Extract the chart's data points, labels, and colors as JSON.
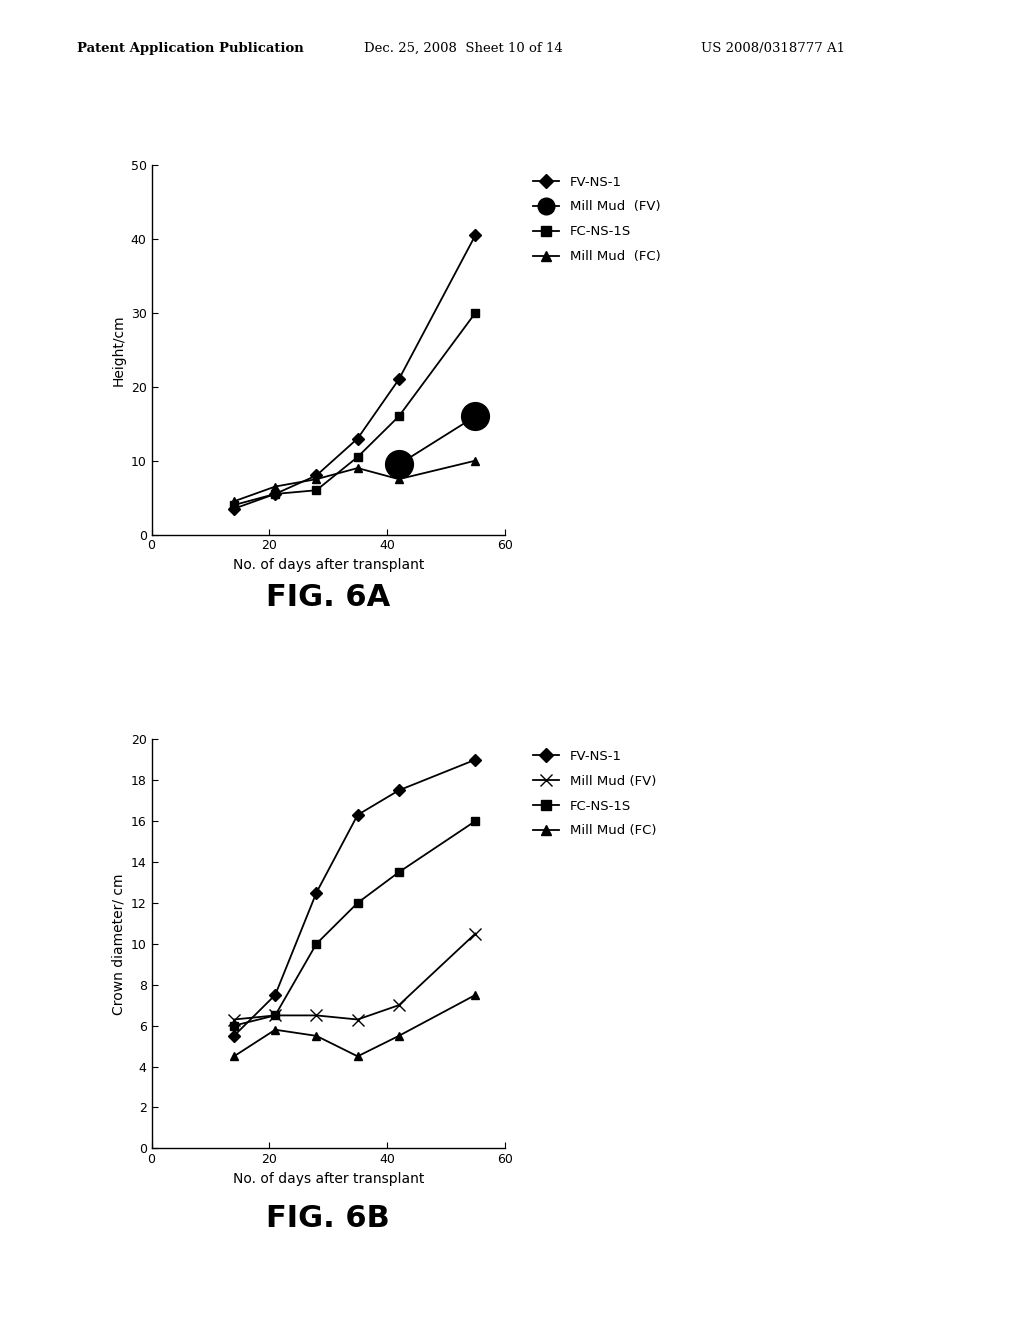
{
  "header_left": "Patent Application Publication",
  "header_mid": "Dec. 25, 2008  Sheet 10 of 14",
  "header_right": "US 2008/0318777 A1",
  "fig6a": {
    "title": "FIG. 6A",
    "xlabel": "No. of days after transplant",
    "ylabel": "Height/cm",
    "xlim": [
      0,
      60
    ],
    "ylim": [
      0,
      50
    ],
    "xticks": [
      0,
      20,
      40,
      60
    ],
    "yticks": [
      0,
      10,
      20,
      30,
      40,
      50
    ],
    "series": [
      {
        "label": "FV-NS-1",
        "x": [
          14,
          21,
          28,
          35,
          42,
          55
        ],
        "y": [
          3.5,
          5.5,
          8.0,
          13.0,
          21.0,
          40.5
        ],
        "marker": "D",
        "markersize": 6,
        "linestyle": "-",
        "color": "#000000",
        "markerfacecolor": "#000000",
        "zorder": 5
      },
      {
        "label": "Mill Mud  (FV)",
        "x": [
          42,
          55
        ],
        "y": [
          9.5,
          16.0
        ],
        "marker": "o",
        "markersize": 20,
        "linestyle": "-",
        "color": "#000000",
        "markerfacecolor": "#000000",
        "zorder": 4
      },
      {
        "label": "FC-NS-1S",
        "x": [
          14,
          21,
          28,
          35,
          42,
          55
        ],
        "y": [
          4.0,
          5.5,
          6.0,
          10.5,
          16.0,
          30.0
        ],
        "marker": "s",
        "markersize": 6,
        "linestyle": "-",
        "color": "#000000",
        "markerfacecolor": "#000000",
        "zorder": 3
      },
      {
        "label": "Mill Mud  (FC)",
        "x": [
          14,
          21,
          28,
          35,
          42,
          55
        ],
        "y": [
          4.5,
          6.5,
          7.5,
          9.0,
          7.5,
          10.0
        ],
        "marker": "^",
        "markersize": 6,
        "linestyle": "-",
        "color": "#000000",
        "markerfacecolor": "#000000",
        "zorder": 2
      }
    ],
    "legend_items": [
      {
        "label": "FV-NS-1",
        "marker": "D",
        "markersize": 7
      },
      {
        "label": "Mill Mud  (FV)",
        "marker": "o",
        "markersize": 12
      },
      {
        "label": "FC-NS-1S",
        "marker": "s",
        "markersize": 7
      },
      {
        "label": "Mill Mud  (FC)",
        "marker": "^",
        "markersize": 7
      }
    ]
  },
  "fig6b": {
    "title": "FIG. 6B",
    "xlabel": "No. of days after transplant",
    "ylabel": "Crown diameter/ cm",
    "xlim": [
      0,
      60
    ],
    "ylim": [
      0,
      20
    ],
    "xticks": [
      0,
      20,
      40,
      60
    ],
    "yticks": [
      0,
      2,
      4,
      6,
      8,
      10,
      12,
      14,
      16,
      18,
      20
    ],
    "series": [
      {
        "label": "FV-NS-1",
        "x": [
          14,
          21,
          28,
          35,
          42,
          55
        ],
        "y": [
          5.5,
          7.5,
          12.5,
          16.3,
          17.5,
          19.0
        ],
        "marker": "D",
        "markersize": 6,
        "linestyle": "-",
        "color": "#000000",
        "markerfacecolor": "#000000",
        "zorder": 5
      },
      {
        "label": "Mill Mud (FV)",
        "x": [
          14,
          21,
          28,
          35,
          42,
          55
        ],
        "y": [
          6.3,
          6.5,
          6.5,
          6.3,
          7.0,
          10.5
        ],
        "marker": "x",
        "markersize": 8,
        "linestyle": "-",
        "color": "#000000",
        "markerfacecolor": "#000000",
        "zorder": 4
      },
      {
        "label": "FC-NS-1S",
        "x": [
          14,
          21,
          28,
          35,
          42,
          55
        ],
        "y": [
          6.0,
          6.5,
          10.0,
          12.0,
          13.5,
          16.0
        ],
        "marker": "s",
        "markersize": 6,
        "linestyle": "-",
        "color": "#000000",
        "markerfacecolor": "#000000",
        "zorder": 3
      },
      {
        "label": "Mill Mud (FC)",
        "x": [
          14,
          21,
          28,
          35,
          42,
          55
        ],
        "y": [
          4.5,
          5.8,
          5.5,
          4.5,
          5.5,
          7.5
        ],
        "marker": "^",
        "markersize": 6,
        "linestyle": "-",
        "color": "#000000",
        "markerfacecolor": "#000000",
        "zorder": 2
      }
    ],
    "legend_items": [
      {
        "label": "FV-NS-1",
        "marker": "D",
        "markersize": 7
      },
      {
        "label": "Mill Mud (FV)",
        "marker": "x",
        "markersize": 8
      },
      {
        "label": "FC-NS-1S",
        "marker": "s",
        "markersize": 7
      },
      {
        "label": "Mill Mud (FC)",
        "marker": "^",
        "markersize": 7
      }
    ]
  },
  "background_color": "#ffffff",
  "line_color": "#000000",
  "font_color": "#000000",
  "header_fontsize": 9.5,
  "axis_label_fontsize": 10,
  "tick_fontsize": 9,
  "legend_fontsize": 9.5,
  "fig_title_fontsize": 22
}
